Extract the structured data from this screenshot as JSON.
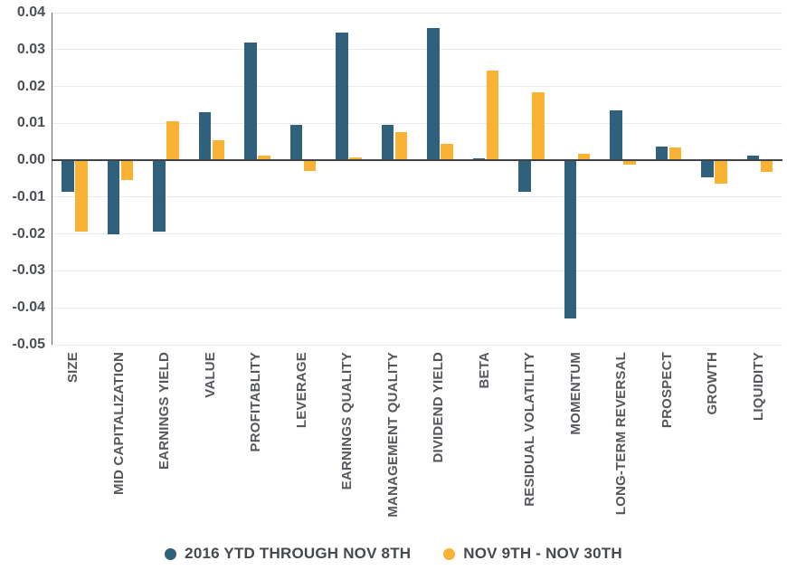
{
  "chart_data": {
    "type": "bar",
    "categories": [
      "SIZE",
      "MID CAPITALIZATION",
      "EARNINGS YIELD",
      "VALUE",
      "PROFITABLITY",
      "LEVERAGE",
      "EARNINGS QUALITY",
      "MANAGEMENT QUALITY",
      "DIVIDEND YIELD",
      "BETA",
      "RESIDUAL VOLATILITY",
      "MOMENTUM",
      "LONG-TERM REVERSAL",
      "PROSPECT",
      "GROWTH",
      "LIQUIDITY"
    ],
    "series": [
      {
        "name": "2016 YTD THROUGH NOV 8TH",
        "color": "#2F607C",
        "values": [
          -0.0085,
          -0.02,
          -0.0193,
          0.0131,
          0.032,
          0.0095,
          0.0345,
          0.0095,
          0.0359,
          0.0006,
          -0.0085,
          -0.0428,
          0.0134,
          0.0037,
          -0.0046,
          0.0013
        ]
      },
      {
        "name": "NOV 9TH - NOV 30TH",
        "color": "#F9B234",
        "values": [
          -0.0193,
          -0.0054,
          0.0105,
          0.0053,
          0.0012,
          -0.0029,
          0.0008,
          0.0077,
          0.0044,
          0.0244,
          0.0184,
          0.0017,
          -0.0011,
          0.0035,
          -0.0064,
          -0.0031
        ]
      }
    ],
    "yticks": [
      "0.04",
      "0.03",
      "0.02",
      "0.01",
      "0.00",
      "-0.01",
      "-0.02",
      "-0.03",
      "-0.04",
      "-0.05"
    ],
    "ylim": [
      -0.05,
      0.04
    ],
    "grid": true,
    "legend_position": "bottom",
    "colors": {
      "grid": "#E9EAEB",
      "zero_axis": "#3F4347",
      "y_axis": "#63666A",
      "tick_text": "#4C5055",
      "label_text": "#54575C",
      "legend_text": "#45494E"
    }
  }
}
